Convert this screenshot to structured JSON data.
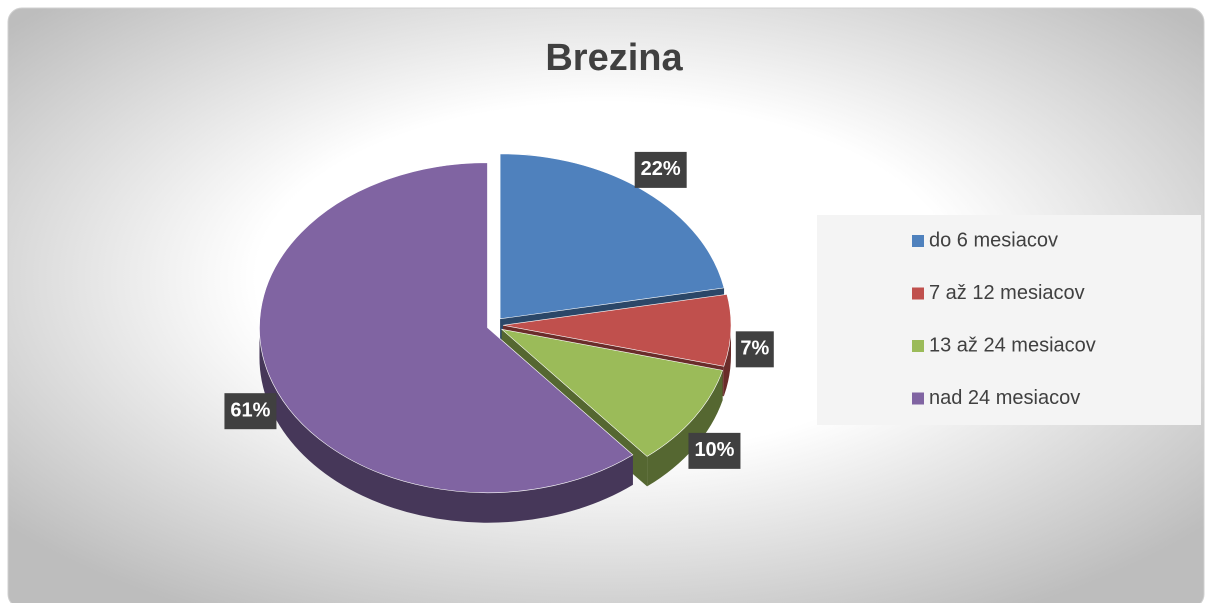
{
  "chart_data": {
    "type": "pie",
    "title": "Brezina",
    "categories": [
      "do 6 mesiacov",
      "7 až 12 mesiacov",
      "13 až 24 mesiacov",
      "nad 24 mesiacov"
    ],
    "values": [
      22,
      7,
      10,
      61
    ],
    "value_labels": [
      "22%",
      "7%",
      "10%",
      "61%"
    ],
    "colors": [
      "#4f81bd",
      "#c0504d",
      "#9bbb59",
      "#8064a2"
    ],
    "legend": "right"
  }
}
